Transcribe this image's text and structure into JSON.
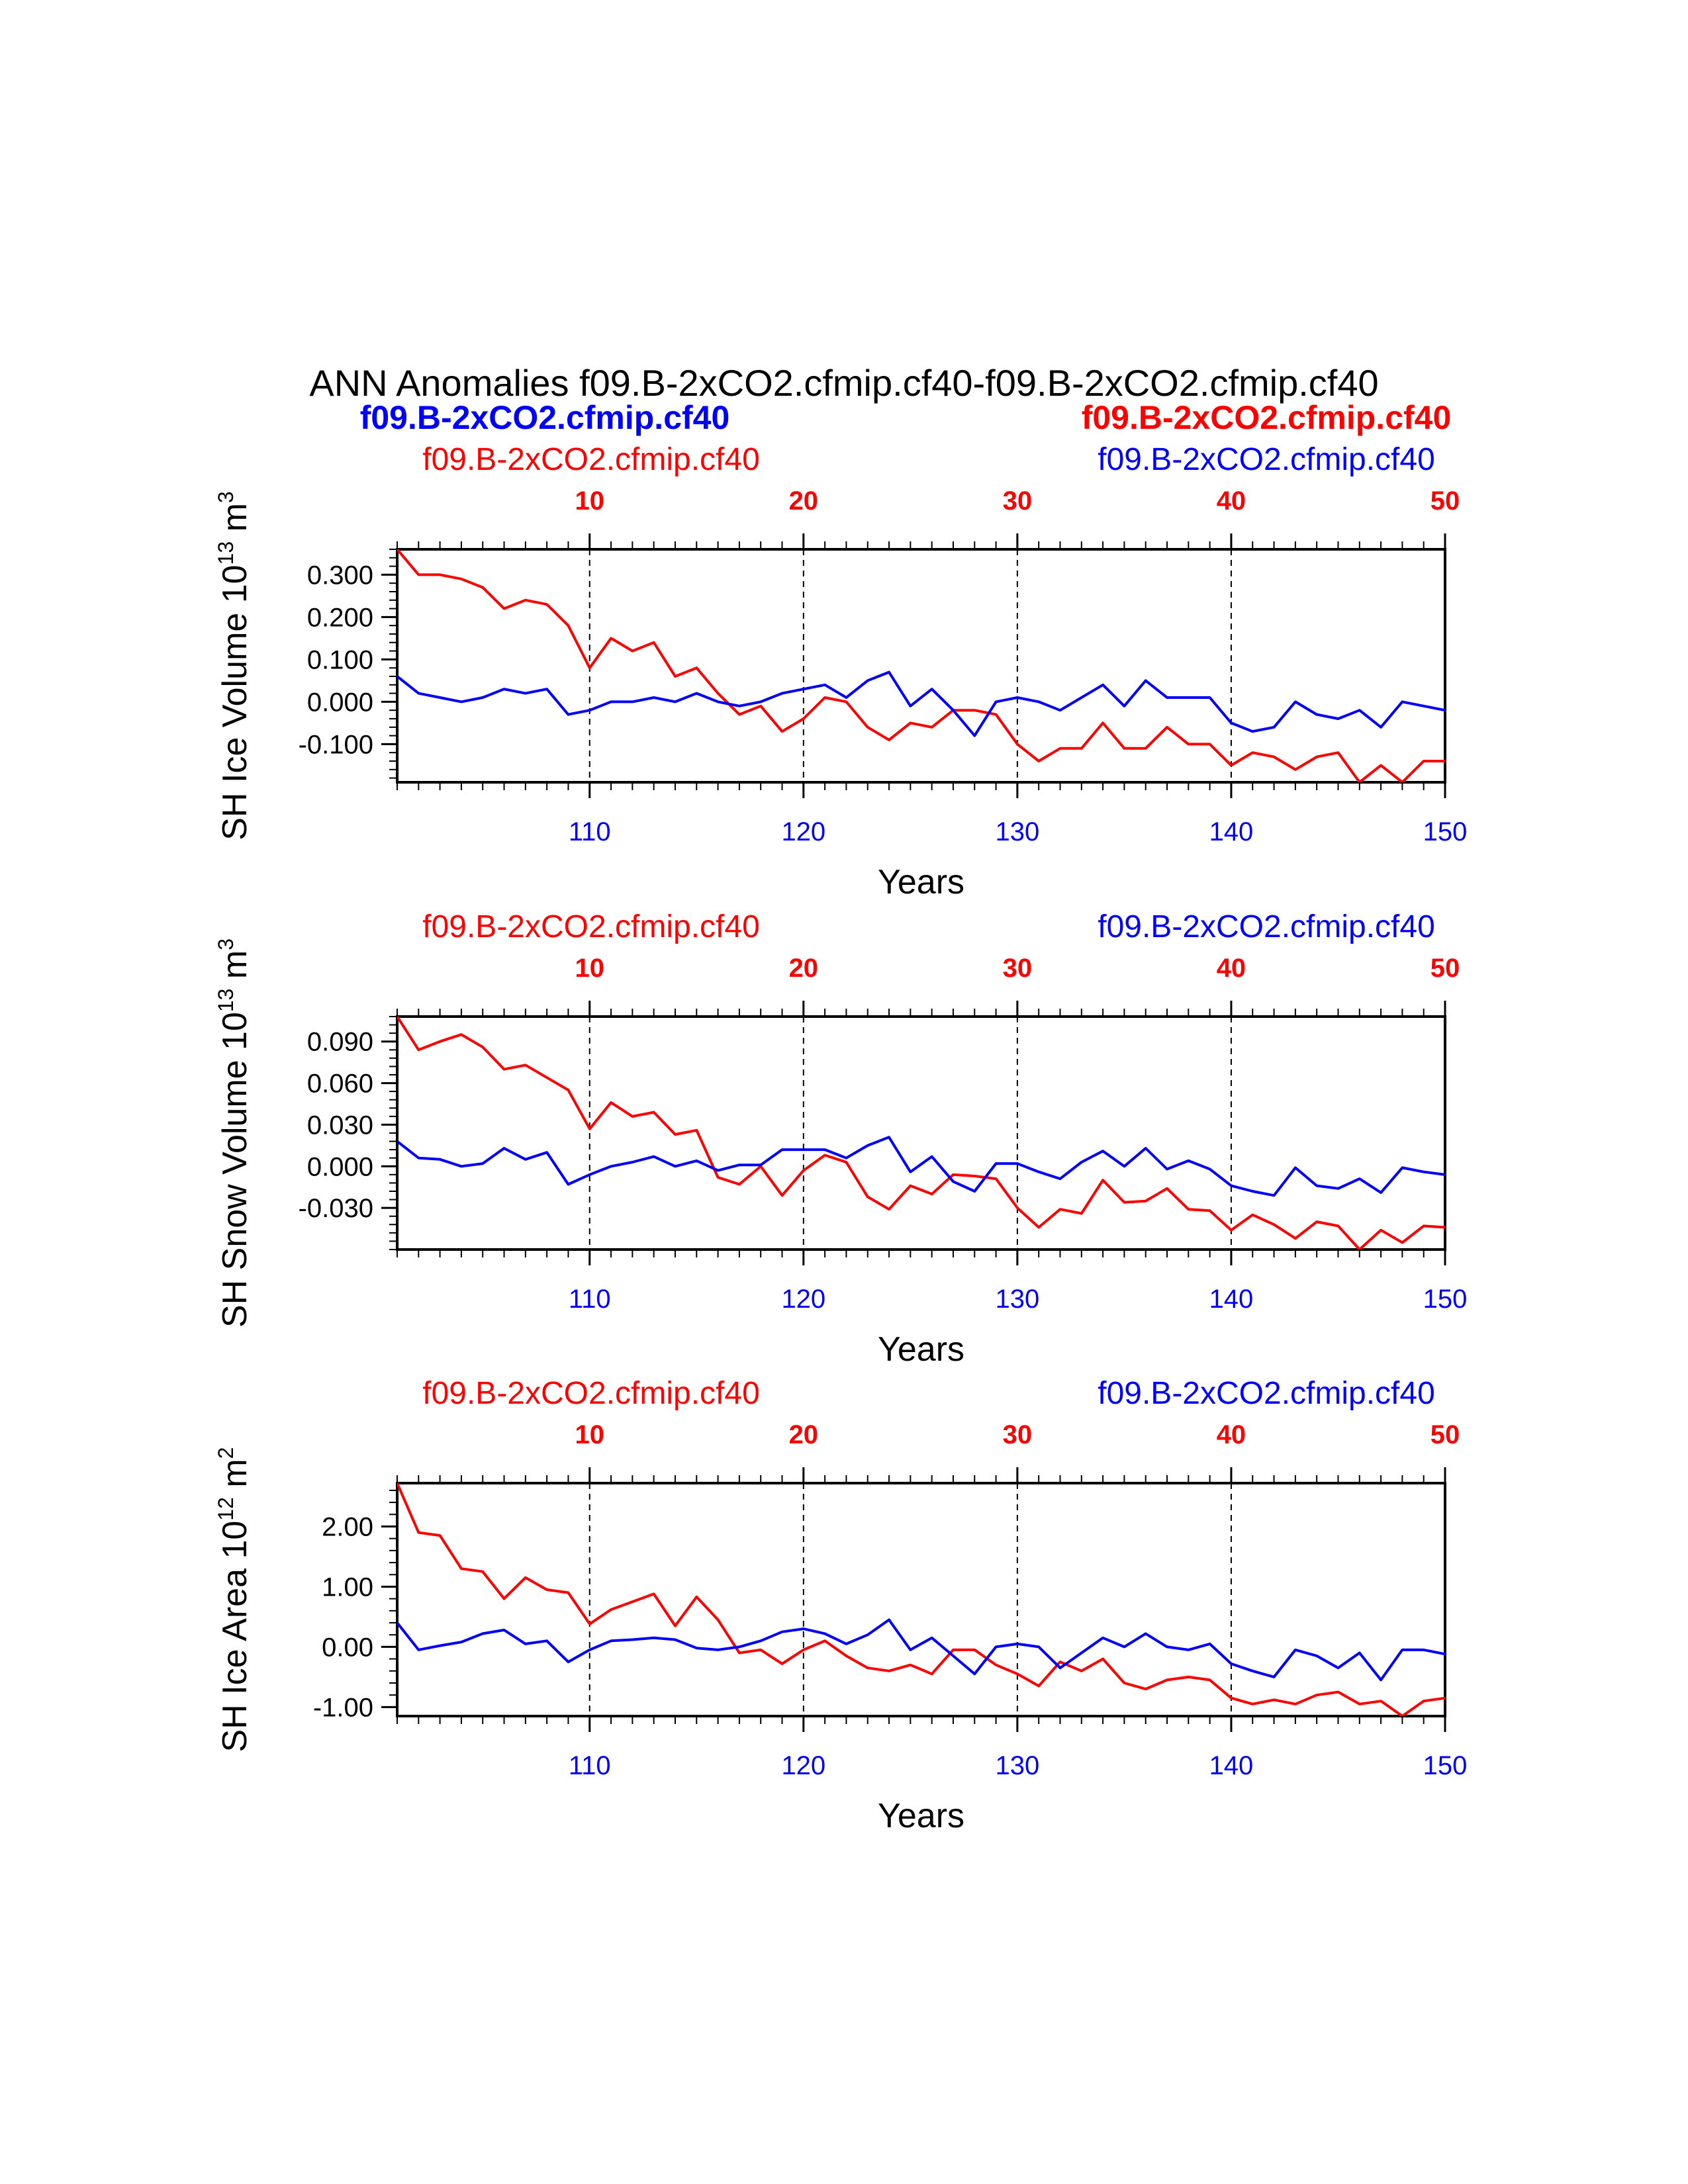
{
  "title": "ANN Anomalies f09.B-2xCO2.cfmip.cf40-f09.B-2xCO2.cfmip.cf40",
  "header_left": "f09.B-2xCO2.cfmip.cf40",
  "header_right": "f09.B-2xCO2.cfmip.cf40",
  "colors": {
    "case1": "#0000ff",
    "case2": "#ff0000",
    "axis": "#000000"
  },
  "chart_data": [
    {
      "type": "line",
      "ylabel": "SH Ice Volume 10",
      "ylabel_exp": "13",
      "ylabel_unit": " m",
      "ylabel_unit_exp": "3",
      "xlabel": "Years",
      "top_left_label": "f09.B-2xCO2.cfmip.cf40",
      "top_right_label": "f09.B-2xCO2.cfmip.cf40",
      "top_axis": {
        "range": [
          1,
          50
        ],
        "ticks": [
          10,
          20,
          30,
          40,
          50
        ]
      },
      "bottom_axis": {
        "range": [
          101,
          150
        ],
        "ticks": [
          110,
          120,
          130,
          140,
          150
        ]
      },
      "ylim": [
        -0.19,
        0.36
      ],
      "yticks": [
        0.3,
        0.2,
        0.1,
        0.0,
        -0.1
      ],
      "yticklabels": [
        "0.300",
        "0.200",
        "0.100",
        "0.000",
        "-0.100"
      ],
      "series": [
        {
          "color": "#ff0000",
          "axis": "top",
          "x_start": 1,
          "values": [
            0.36,
            0.3,
            0.3,
            0.29,
            0.27,
            0.22,
            0.24,
            0.23,
            0.18,
            0.08,
            0.15,
            0.12,
            0.14,
            0.06,
            0.08,
            0.02,
            -0.03,
            -0.01,
            -0.07,
            -0.04,
            0.01,
            0.0,
            -0.06,
            -0.09,
            -0.05,
            -0.06,
            -0.02,
            -0.02,
            -0.03,
            -0.1,
            -0.14,
            -0.11,
            -0.11,
            -0.05,
            -0.11,
            -0.11,
            -0.06,
            -0.1,
            -0.1,
            -0.15,
            -0.12,
            -0.13,
            -0.16,
            -0.13,
            -0.12,
            -0.19,
            -0.15,
            -0.19,
            -0.14,
            -0.14
          ]
        },
        {
          "color": "#0000ff",
          "axis": "bottom",
          "x_start": 101,
          "values": [
            0.06,
            0.02,
            0.01,
            0.0,
            0.01,
            0.03,
            0.02,
            0.03,
            -0.03,
            -0.02,
            0.0,
            0.0,
            0.01,
            0.0,
            0.02,
            0.0,
            -0.01,
            0.0,
            0.02,
            0.03,
            0.04,
            0.01,
            0.05,
            0.07,
            -0.01,
            0.03,
            -0.02,
            -0.08,
            0.0,
            0.01,
            0.0,
            -0.02,
            0.01,
            0.04,
            -0.01,
            0.05,
            0.01,
            0.01,
            0.01,
            -0.05,
            -0.07,
            -0.06,
            0.0,
            -0.03,
            -0.04,
            -0.02,
            -0.06,
            0.0,
            -0.01,
            -0.02
          ]
        }
      ]
    },
    {
      "type": "line",
      "ylabel": "SH Snow Volume 10",
      "ylabel_exp": "13",
      "ylabel_unit": " m",
      "ylabel_unit_exp": "3",
      "xlabel": "Years",
      "top_left_label": "f09.B-2xCO2.cfmip.cf40",
      "top_right_label": "f09.B-2xCO2.cfmip.cf40",
      "top_axis": {
        "range": [
          1,
          50
        ],
        "ticks": [
          10,
          20,
          30,
          40,
          50
        ]
      },
      "bottom_axis": {
        "range": [
          101,
          150
        ],
        "ticks": [
          110,
          120,
          130,
          140,
          150
        ]
      },
      "ylim": [
        -0.06,
        0.108
      ],
      "yticks": [
        0.09,
        0.06,
        0.03,
        0.0,
        -0.03
      ],
      "yticklabels": [
        "0.090",
        "0.060",
        "0.030",
        "0.000",
        "-0.030"
      ],
      "series": [
        {
          "color": "#ff0000",
          "axis": "top",
          "x_start": 1,
          "values": [
            0.108,
            0.084,
            0.09,
            0.095,
            0.086,
            0.07,
            0.073,
            0.064,
            0.055,
            0.027,
            0.046,
            0.036,
            0.039,
            0.023,
            0.026,
            -0.008,
            -0.013,
            0.0,
            -0.021,
            -0.003,
            0.008,
            0.003,
            -0.022,
            -0.031,
            -0.014,
            -0.02,
            -0.006,
            -0.007,
            -0.009,
            -0.03,
            -0.044,
            -0.031,
            -0.034,
            -0.01,
            -0.026,
            -0.025,
            -0.016,
            -0.031,
            -0.032,
            -0.046,
            -0.035,
            -0.042,
            -0.052,
            -0.04,
            -0.043,
            -0.06,
            -0.046,
            -0.055,
            -0.043,
            -0.044
          ]
        },
        {
          "color": "#0000ff",
          "axis": "bottom",
          "x_start": 101,
          "values": [
            0.018,
            0.006,
            0.005,
            0.0,
            0.002,
            0.013,
            0.005,
            0.01,
            -0.013,
            -0.006,
            0.0,
            0.003,
            0.007,
            0.0,
            0.004,
            -0.003,
            0.001,
            0.001,
            0.012,
            0.012,
            0.012,
            0.006,
            0.015,
            0.021,
            -0.004,
            0.007,
            -0.011,
            -0.018,
            0.002,
            0.002,
            -0.004,
            -0.009,
            0.003,
            0.011,
            0.0,
            0.013,
            -0.002,
            0.004,
            -0.002,
            -0.014,
            -0.018,
            -0.021,
            -0.001,
            -0.014,
            -0.016,
            -0.009,
            -0.019,
            -0.001,
            -0.004,
            -0.006
          ]
        }
      ]
    },
    {
      "type": "line",
      "ylabel": "SH Ice Area 10",
      "ylabel_exp": "12",
      "ylabel_unit": " m",
      "ylabel_unit_exp": "2",
      "xlabel": "Years",
      "top_left_label": "f09.B-2xCO2.cfmip.cf40",
      "top_right_label": "f09.B-2xCO2.cfmip.cf40",
      "top_axis": {
        "range": [
          1,
          50
        ],
        "ticks": [
          10,
          20,
          30,
          40,
          50
        ]
      },
      "bottom_axis": {
        "range": [
          101,
          150
        ],
        "ticks": [
          110,
          120,
          130,
          140,
          150
        ]
      },
      "ylim": [
        -1.15,
        2.72
      ],
      "yticks": [
        2.0,
        1.0,
        0.0,
        -1.0
      ],
      "yticklabels": [
        "2.00",
        "1.00",
        "0.00",
        "-1.00"
      ],
      "series": [
        {
          "color": "#ff0000",
          "axis": "top",
          "x_start": 1,
          "values": [
            2.72,
            1.9,
            1.85,
            1.3,
            1.25,
            0.8,
            1.15,
            0.95,
            0.9,
            0.38,
            0.62,
            0.75,
            0.88,
            0.35,
            0.83,
            0.45,
            -0.1,
            -0.05,
            -0.28,
            -0.05,
            0.1,
            -0.15,
            -0.35,
            -0.4,
            -0.3,
            -0.45,
            -0.05,
            -0.05,
            -0.3,
            -0.45,
            -0.65,
            -0.25,
            -0.4,
            -0.2,
            -0.6,
            -0.7,
            -0.55,
            -0.5,
            -0.55,
            -0.85,
            -0.95,
            -0.88,
            -0.95,
            -0.8,
            -0.75,
            -0.95,
            -0.9,
            -1.15,
            -0.9,
            -0.85
          ]
        },
        {
          "color": "#0000ff",
          "axis": "bottom",
          "x_start": 101,
          "values": [
            0.4,
            -0.05,
            0.02,
            0.08,
            0.22,
            0.28,
            0.05,
            0.1,
            -0.25,
            -0.05,
            0.1,
            0.12,
            0.15,
            0.12,
            -0.02,
            -0.05,
            0.0,
            0.1,
            0.25,
            0.3,
            0.22,
            0.05,
            0.2,
            0.45,
            -0.05,
            0.15,
            -0.15,
            -0.45,
            0.0,
            0.05,
            0.0,
            -0.35,
            -0.1,
            0.15,
            0.0,
            0.22,
            0.0,
            -0.05,
            0.05,
            -0.28,
            -0.4,
            -0.5,
            -0.05,
            -0.15,
            -0.35,
            -0.1,
            -0.55,
            -0.05,
            -0.05,
            -0.12
          ]
        }
      ]
    }
  ]
}
